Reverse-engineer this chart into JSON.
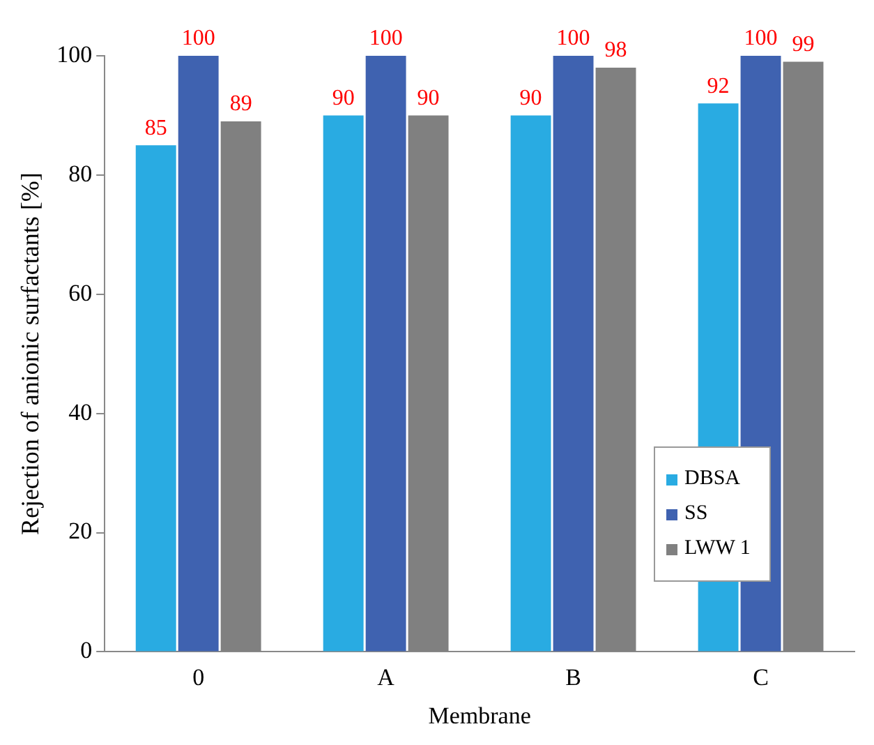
{
  "chart_data": {
    "type": "bar",
    "xlabel": "Membrane",
    "ylabel": "Rejection of anionic surfactants [%]",
    "categories": [
      "0",
      "A",
      "B",
      "C"
    ],
    "series": [
      {
        "name": "DBSA",
        "color": "#29abe2",
        "values": [
          85,
          90,
          90,
          92
        ]
      },
      {
        "name": "SS",
        "color": "#3f62b0",
        "values": [
          100,
          100,
          100,
          100
        ]
      },
      {
        "name": "LWW 1",
        "color": "#808080",
        "values": [
          89,
          90,
          98,
          99
        ]
      }
    ],
    "ylim": [
      0,
      100
    ],
    "yticks": [
      0,
      20,
      40,
      60,
      80,
      100
    ],
    "grid": false,
    "legend": "bottom right",
    "data_labels": true
  }
}
